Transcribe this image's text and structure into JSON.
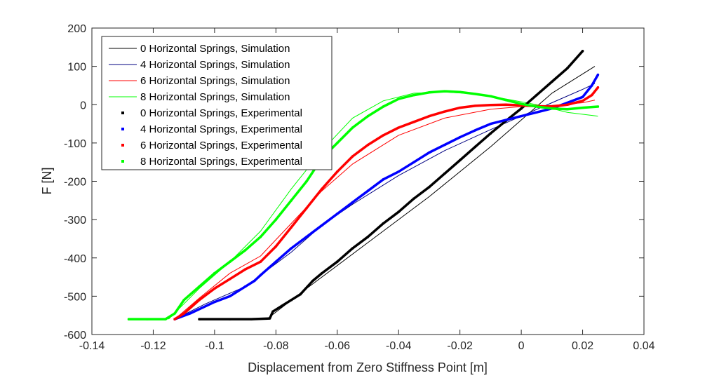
{
  "chart_data": {
    "type": "line",
    "title": "",
    "xlabel": "Displacement from Zero Stiffness Point [m]",
    "ylabel": "F [N]",
    "xlim": [
      -0.14,
      0.04
    ],
    "ylim": [
      -600,
      200
    ],
    "xticks": [
      -0.14,
      -0.12,
      -0.1,
      -0.08,
      -0.06,
      -0.04,
      -0.02,
      0,
      0.02,
      0.04
    ],
    "xtick_labels": [
      "-0.14",
      "-0.12",
      "-0.1",
      "-0.08",
      "-0.06",
      "-0.04",
      "-0.02",
      "0",
      "0.02",
      "0.04"
    ],
    "yticks": [
      -600,
      -500,
      -400,
      -300,
      -200,
      -100,
      0,
      100,
      200
    ],
    "ytick_labels": [
      "-600",
      "-500",
      "-400",
      "-300",
      "-200",
      "-100",
      "0",
      "100",
      "200"
    ],
    "grid": false,
    "legend_position": "top-left",
    "series": [
      {
        "name": "0 Horizontal Springs, Simulation",
        "kind": "line",
        "color": "#000000",
        "points": [
          [
            -0.083,
            -560
          ],
          [
            -0.07,
            -480
          ],
          [
            -0.05,
            -360
          ],
          [
            -0.03,
            -240
          ],
          [
            -0.01,
            -110
          ],
          [
            0.0,
            -40
          ],
          [
            0.01,
            30
          ],
          [
            0.024,
            100
          ]
        ]
      },
      {
        "name": "4 Horizontal Springs, Simulation",
        "kind": "line",
        "color": "#000080",
        "points": [
          [
            -0.113,
            -560
          ],
          [
            -0.103,
            -520
          ],
          [
            -0.09,
            -475
          ],
          [
            -0.085,
            -445
          ],
          [
            -0.075,
            -385
          ],
          [
            -0.065,
            -315
          ],
          [
            -0.055,
            -260
          ],
          [
            -0.04,
            -185
          ],
          [
            -0.025,
            -120
          ],
          [
            -0.01,
            -65
          ],
          [
            0.0,
            -30
          ],
          [
            0.01,
            5
          ],
          [
            0.02,
            40
          ],
          [
            0.024,
            55
          ]
        ]
      },
      {
        "name": "6 Horizontal Springs, Simulation",
        "kind": "line",
        "color": "#ff0000",
        "points": [
          [
            -0.113,
            -560
          ],
          [
            -0.105,
            -505
          ],
          [
            -0.095,
            -440
          ],
          [
            -0.085,
            -395
          ],
          [
            -0.075,
            -310
          ],
          [
            -0.065,
            -225
          ],
          [
            -0.055,
            -155
          ],
          [
            -0.04,
            -80
          ],
          [
            -0.025,
            -35
          ],
          [
            -0.01,
            -12
          ],
          [
            0.0,
            -5
          ],
          [
            0.01,
            -2
          ],
          [
            0.02,
            5
          ],
          [
            0.024,
            12
          ]
        ]
      },
      {
        "name": "8 Horizontal Springs, Simulation",
        "kind": "line",
        "color": "#00ff00",
        "points": [
          [
            -0.115,
            -560
          ],
          [
            -0.105,
            -480
          ],
          [
            -0.095,
            -410
          ],
          [
            -0.085,
            -330
          ],
          [
            -0.075,
            -220
          ],
          [
            -0.065,
            -120
          ],
          [
            -0.055,
            -35
          ],
          [
            -0.045,
            10
          ],
          [
            -0.035,
            30
          ],
          [
            -0.025,
            33
          ],
          [
            -0.015,
            28
          ],
          [
            -0.005,
            15
          ],
          [
            0.005,
            0
          ],
          [
            0.015,
            -20
          ],
          [
            0.025,
            -30
          ]
        ]
      },
      {
        "name": "0 Horizontal Springs, Experimental",
        "kind": "markers",
        "color": "#000000",
        "points": [
          [
            -0.105,
            -560
          ],
          [
            -0.095,
            -560
          ],
          [
            -0.088,
            -560
          ],
          [
            -0.082,
            -558
          ],
          [
            -0.081,
            -540
          ],
          [
            -0.078,
            -525
          ],
          [
            -0.075,
            -510
          ],
          [
            -0.072,
            -495
          ],
          [
            -0.068,
            -460
          ],
          [
            -0.065,
            -440
          ],
          [
            -0.06,
            -410
          ],
          [
            -0.055,
            -375
          ],
          [
            -0.05,
            -345
          ],
          [
            -0.045,
            -310
          ],
          [
            -0.04,
            -280
          ],
          [
            -0.035,
            -245
          ],
          [
            -0.03,
            -215
          ],
          [
            -0.025,
            -180
          ],
          [
            -0.02,
            -145
          ],
          [
            -0.015,
            -110
          ],
          [
            -0.01,
            -75
          ],
          [
            -0.005,
            -42
          ],
          [
            0.0,
            -10
          ],
          [
            0.005,
            25
          ],
          [
            0.01,
            60
          ],
          [
            0.015,
            95
          ],
          [
            0.02,
            140
          ]
        ]
      },
      {
        "name": "4 Horizontal Springs, Experimental",
        "kind": "markers",
        "color": "#0000ff",
        "points": [
          [
            -0.113,
            -560
          ],
          [
            -0.108,
            -545
          ],
          [
            -0.104,
            -530
          ],
          [
            -0.1,
            -515
          ],
          [
            -0.095,
            -500
          ],
          [
            -0.09,
            -475
          ],
          [
            -0.087,
            -460
          ],
          [
            -0.085,
            -445
          ],
          [
            -0.08,
            -410
          ],
          [
            -0.075,
            -375
          ],
          [
            -0.07,
            -345
          ],
          [
            -0.065,
            -315
          ],
          [
            -0.06,
            -285
          ],
          [
            -0.055,
            -255
          ],
          [
            -0.05,
            -225
          ],
          [
            -0.045,
            -195
          ],
          [
            -0.04,
            -175
          ],
          [
            -0.035,
            -150
          ],
          [
            -0.03,
            -125
          ],
          [
            -0.025,
            -105
          ],
          [
            -0.02,
            -85
          ],
          [
            -0.015,
            -67
          ],
          [
            -0.01,
            -50
          ],
          [
            -0.005,
            -40
          ],
          [
            0.0,
            -30
          ],
          [
            0.005,
            -20
          ],
          [
            0.01,
            -10
          ],
          [
            0.015,
            5
          ],
          [
            0.02,
            20
          ],
          [
            0.023,
            50
          ],
          [
            0.025,
            78
          ]
        ]
      },
      {
        "name": "6 Horizontal Springs, Experimental",
        "kind": "markers",
        "color": "#ff0000",
        "points": [
          [
            -0.113,
            -560
          ],
          [
            -0.11,
            -545
          ],
          [
            -0.105,
            -510
          ],
          [
            -0.1,
            -480
          ],
          [
            -0.095,
            -455
          ],
          [
            -0.09,
            -430
          ],
          [
            -0.085,
            -410
          ],
          [
            -0.08,
            -370
          ],
          [
            -0.075,
            -320
          ],
          [
            -0.07,
            -270
          ],
          [
            -0.065,
            -220
          ],
          [
            -0.06,
            -175
          ],
          [
            -0.055,
            -135
          ],
          [
            -0.05,
            -105
          ],
          [
            -0.045,
            -80
          ],
          [
            -0.04,
            -60
          ],
          [
            -0.035,
            -45
          ],
          [
            -0.03,
            -30
          ],
          [
            -0.025,
            -18
          ],
          [
            -0.02,
            -8
          ],
          [
            -0.015,
            -3
          ],
          [
            -0.01,
            -1
          ],
          [
            -0.005,
            0
          ],
          [
            0.0,
            -2
          ],
          [
            0.005,
            -4
          ],
          [
            0.01,
            -5
          ],
          [
            0.015,
            0
          ],
          [
            0.02,
            10
          ],
          [
            0.023,
            25
          ],
          [
            0.025,
            45
          ]
        ]
      },
      {
        "name": "8 Horizontal Springs, Experimental",
        "kind": "markers",
        "color": "#00ff00",
        "points": [
          [
            -0.128,
            -560
          ],
          [
            -0.122,
            -560
          ],
          [
            -0.116,
            -560
          ],
          [
            -0.113,
            -545
          ],
          [
            -0.11,
            -510
          ],
          [
            -0.105,
            -475
          ],
          [
            -0.1,
            -440
          ],
          [
            -0.095,
            -410
          ],
          [
            -0.09,
            -380
          ],
          [
            -0.085,
            -345
          ],
          [
            -0.08,
            -300
          ],
          [
            -0.075,
            -250
          ],
          [
            -0.07,
            -200
          ],
          [
            -0.065,
            -140
          ],
          [
            -0.06,
            -100
          ],
          [
            -0.055,
            -60
          ],
          [
            -0.05,
            -30
          ],
          [
            -0.045,
            -5
          ],
          [
            -0.04,
            15
          ],
          [
            -0.035,
            25
          ],
          [
            -0.03,
            32
          ],
          [
            -0.025,
            35
          ],
          [
            -0.02,
            33
          ],
          [
            -0.015,
            28
          ],
          [
            -0.01,
            22
          ],
          [
            -0.005,
            12
          ],
          [
            0.0,
            2
          ],
          [
            0.005,
            -5
          ],
          [
            0.01,
            -10
          ],
          [
            0.015,
            -12
          ],
          [
            0.02,
            -8
          ],
          [
            0.025,
            -5
          ]
        ]
      }
    ]
  }
}
